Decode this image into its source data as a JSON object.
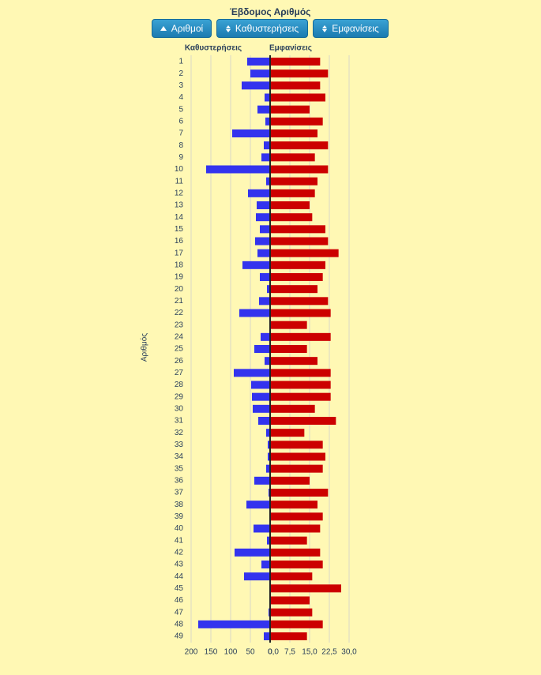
{
  "buttons": [
    "Αριθμοί",
    "Καθυστερήσεις",
    "Εμφανίσεις"
  ],
  "chart_data": {
    "type": "butterfly",
    "title": "Έβδομος Αριθμός",
    "ylabel": "Αριθμός",
    "categories": [
      "1",
      "2",
      "3",
      "4",
      "5",
      "6",
      "7",
      "8",
      "9",
      "10",
      "11",
      "12",
      "13",
      "14",
      "15",
      "16",
      "17",
      "18",
      "19",
      "20",
      "21",
      "22",
      "23",
      "24",
      "25",
      "26",
      "27",
      "28",
      "29",
      "30",
      "31",
      "32",
      "33",
      "34",
      "35",
      "36",
      "37",
      "38",
      "39",
      "40",
      "41",
      "42",
      "43",
      "44",
      "45",
      "46",
      "47",
      "48",
      "49"
    ],
    "series": [
      {
        "name": "Καθυστερήσεις",
        "color": "#3333ee",
        "values": [
          58,
          50,
          72,
          14,
          32,
          12,
          96,
          16,
          22,
          162,
          10,
          56,
          34,
          36,
          26,
          38,
          32,
          70,
          26,
          8,
          28,
          78,
          0,
          24,
          40,
          14,
          92,
          48,
          46,
          44,
          30,
          10,
          6,
          6,
          10,
          40,
          4,
          60,
          2,
          42,
          8,
          90,
          22,
          66,
          0,
          0,
          4,
          182,
          16
        ]
      },
      {
        "name": "Εμφανίσεις",
        "color": "#cc0000",
        "axis": "x2",
        "values": [
          19,
          22,
          19,
          21,
          15,
          20,
          18,
          22,
          17,
          22,
          18,
          17,
          15,
          16,
          21,
          22,
          26,
          21,
          20,
          18,
          22,
          23,
          14,
          23,
          14,
          18,
          23,
          23,
          23,
          17,
          25,
          13,
          20,
          21,
          20,
          15,
          22,
          18,
          20,
          19,
          14,
          19,
          20,
          16,
          27,
          15,
          16,
          20,
          14
        ]
      }
    ],
    "xlim": [
      200,
      0
    ],
    "xticks": [
      200,
      150,
      100,
      50,
      0
    ],
    "x2lim": [
      0,
      30
    ],
    "x2ticks": [
      {
        "value": 0,
        "label": "0,0"
      },
      {
        "value": 7.5,
        "label": "7,5"
      },
      {
        "value": 15,
        "label": "15,0"
      },
      {
        "value": 22.5,
        "label": "22,5"
      },
      {
        "value": 30,
        "label": "30,0"
      }
    ],
    "grid": true
  }
}
